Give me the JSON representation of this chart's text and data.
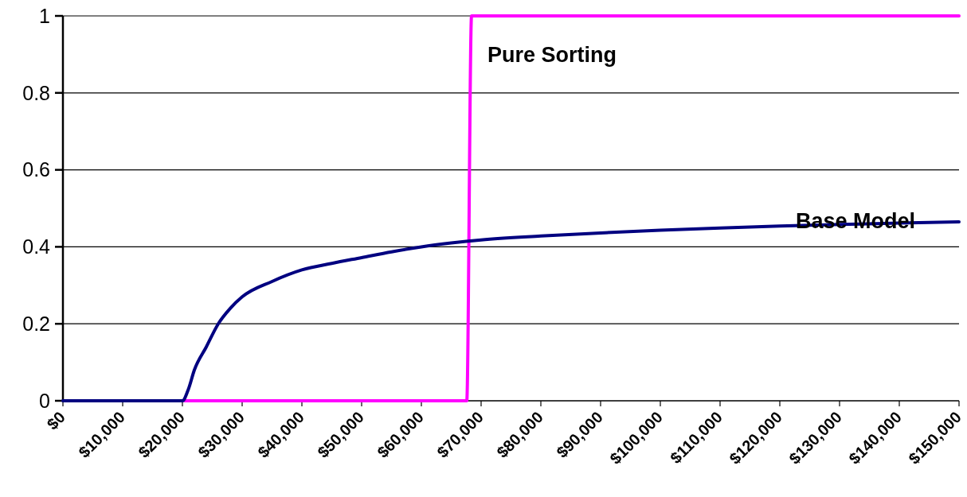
{
  "chart_data": {
    "type": "line",
    "xlim": [
      0,
      150000
    ],
    "ylim": [
      0,
      1
    ],
    "xticks": [
      {
        "value": 0,
        "label": "$0"
      },
      {
        "value": 10000,
        "label": "$10,000"
      },
      {
        "value": 20000,
        "label": "$20,000"
      },
      {
        "value": 30000,
        "label": "$30,000"
      },
      {
        "value": 40000,
        "label": "$40,000"
      },
      {
        "value": 50000,
        "label": "$50,000"
      },
      {
        "value": 60000,
        "label": "$60,000"
      },
      {
        "value": 70000,
        "label": "$70,000"
      },
      {
        "value": 80000,
        "label": "$80,000"
      },
      {
        "value": 90000,
        "label": "$90,000"
      },
      {
        "value": 100000,
        "label": "$100,000"
      },
      {
        "value": 110000,
        "label": "$110,000"
      },
      {
        "value": 120000,
        "label": "$120,000"
      },
      {
        "value": 130000,
        "label": "$130,000"
      },
      {
        "value": 140000,
        "label": "$140,000"
      },
      {
        "value": 150000,
        "label": "$150,000"
      }
    ],
    "yticks": [
      0,
      0.2,
      0.4,
      0.6,
      0.8,
      1
    ],
    "grid": "y",
    "marker": "none",
    "line_style": "solid",
    "series": [
      {
        "name": "Pure Sorting",
        "color": "#ff00ff",
        "x": [
          20000,
          67600,
          68400,
          150000
        ],
        "values": [
          0,
          0,
          1,
          1
        ]
      },
      {
        "name": "Base Model",
        "color": "#000080",
        "x": [
          0,
          20000,
          21000,
          22000,
          24000,
          26000,
          28000,
          30000,
          35000,
          40000,
          45000,
          50000,
          55000,
          60000,
          65000,
          70000,
          80000,
          90000,
          100000,
          110000,
          120000,
          130000,
          140000,
          150000
        ],
        "values": [
          0,
          0,
          0.03,
          0.08,
          0.14,
          0.2,
          0.24,
          0.27,
          0.31,
          0.34,
          0.357,
          0.372,
          0.387,
          0.4,
          0.41,
          0.418,
          0.428,
          0.436,
          0.443,
          0.449,
          0.454,
          0.458,
          0.462,
          0.465
        ]
      }
    ]
  }
}
